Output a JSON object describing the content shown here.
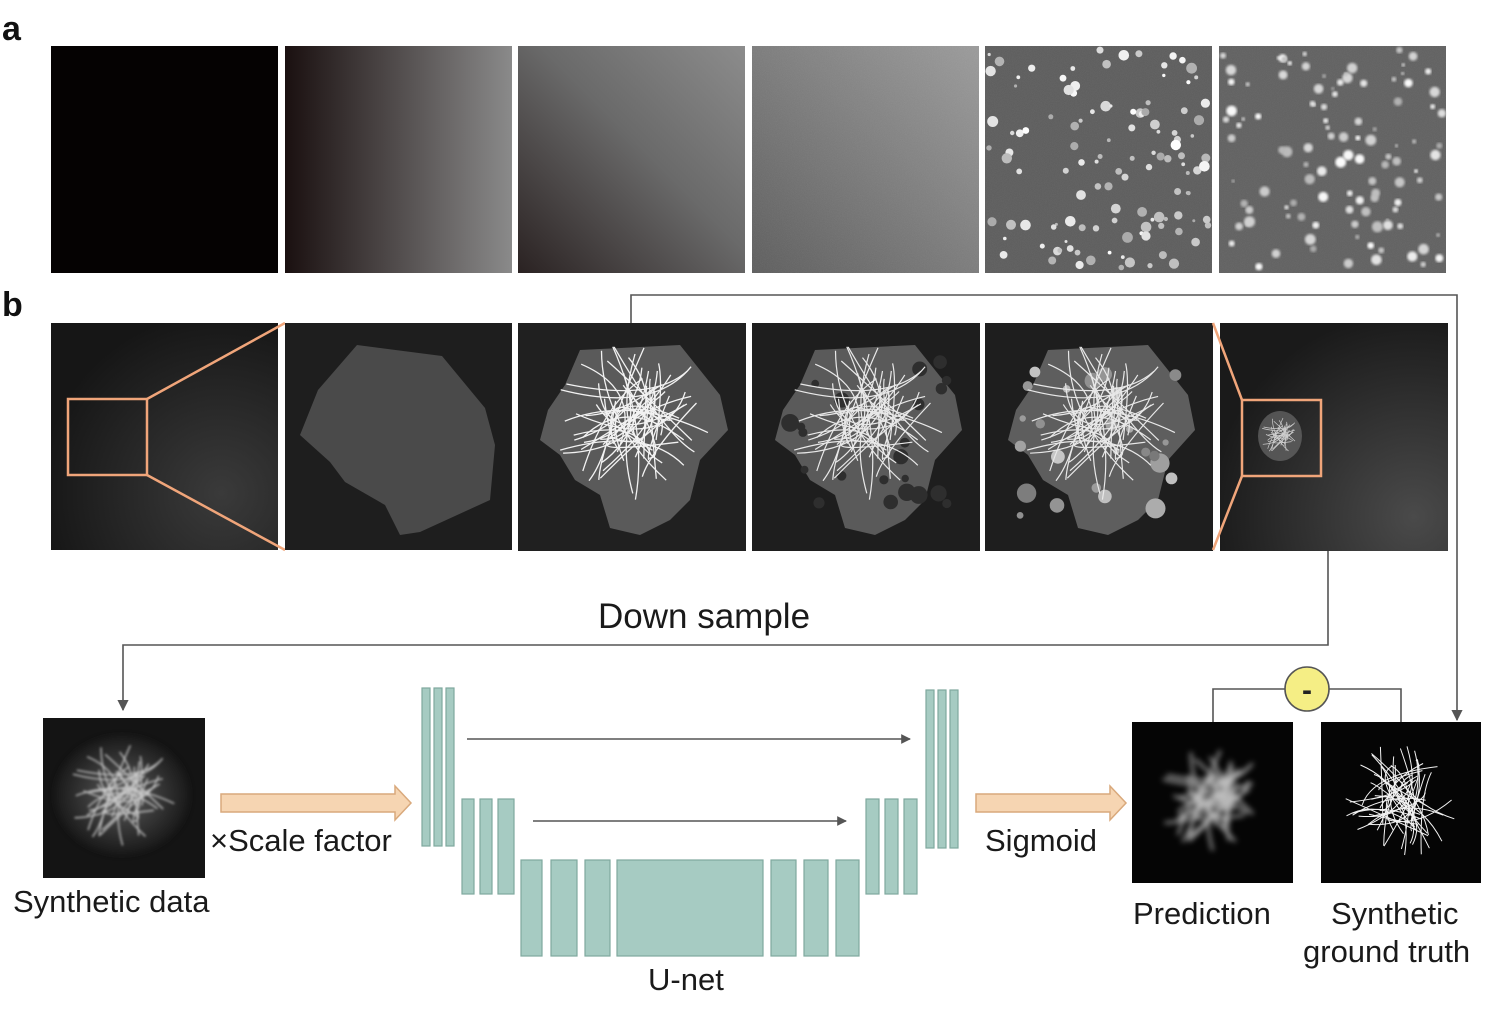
{
  "panels": {
    "a": "a",
    "b": "b"
  },
  "labels": {
    "down_sample": "Down sample",
    "scale_factor": "×Scale factor",
    "sigmoid": "Sigmoid",
    "synthetic_data": "Synthetic data",
    "unet": "U-net",
    "prediction": "Prediction",
    "synthetic_gt_line1": "Synthetic",
    "synthetic_gt_line2": "ground truth",
    "minus": "-"
  },
  "colors": {
    "unet_block": "#a6cbc2",
    "unet_stroke": "#7fa89e",
    "arrow_fill": "#f6d5b2",
    "arrow_stroke": "#d9a97c",
    "zoom_box": "#f0a57a",
    "minus_circle": "#f5ee85",
    "connector": "#555555"
  }
}
